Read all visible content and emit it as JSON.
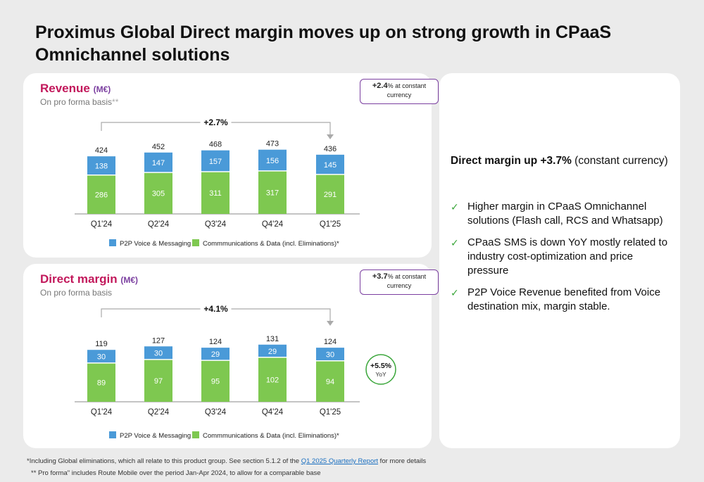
{
  "title": "Proximus Global Direct margin moves up on strong growth in CPaaS Omnichannel solutions",
  "colors": {
    "p2p": "#4a9ad8",
    "comm": "#7ec850",
    "accent_title": "#c2185b",
    "accent_unit": "#7b3fa0",
    "yoy_circle": "#3aa63a"
  },
  "revenue": {
    "title": "Revenue",
    "unit": "(M€)",
    "subtitle": "On pro forma basis",
    "subtitle_mark": "**",
    "callout_value": "+2.4",
    "callout_text": "% at constant currency",
    "growth_label": "+2.7%"
  },
  "direct_margin": {
    "title": "Direct margin",
    "unit": "(M€)",
    "subtitle": "On pro forma basis",
    "callout_value": "+3.7",
    "callout_text": "% at constant currency",
    "growth_label": "+4.1%",
    "yoy_value": "+5.5%",
    "yoy_label": "YoY"
  },
  "legend": {
    "p2p": "P2P Voice & Messaging",
    "comm": "Commmunications & Data (incl. Eliminations)*"
  },
  "chart_data": [
    {
      "type": "bar",
      "stacked": true,
      "title": "Revenue (M€)",
      "categories": [
        "Q1'24",
        "Q2'24",
        "Q3'24",
        "Q4'24",
        "Q1'25"
      ],
      "series": [
        {
          "name": "Commmunications & Data (incl. Eliminations)*",
          "values": [
            286,
            305,
            311,
            317,
            291
          ]
        },
        {
          "name": "P2P Voice & Messaging",
          "values": [
            138,
            147,
            157,
            156,
            145
          ]
        }
      ],
      "totals": [
        424,
        452,
        468,
        473,
        436
      ]
    },
    {
      "type": "bar",
      "stacked": true,
      "title": "Direct margin (M€)",
      "categories": [
        "Q1'24",
        "Q2'24",
        "Q3'24",
        "Q4'24",
        "Q1'25"
      ],
      "series": [
        {
          "name": "Commmunications & Data (incl. Eliminations)*",
          "values": [
            89,
            97,
            95,
            102,
            94
          ]
        },
        {
          "name": "P2P Voice & Messaging",
          "values": [
            30,
            30,
            29,
            29,
            30
          ]
        }
      ],
      "totals": [
        119,
        127,
        124,
        131,
        124
      ]
    }
  ],
  "right_panel": {
    "headline_bold": "Direct margin up +3.7%",
    "headline_rest": " (constant currency)",
    "check": "✓",
    "bullets": [
      "Higher margin in CPaaS Omnichannel solutions (Flash call, RCS and Whatsapp)",
      "CPaaS SMS is down YoY mostly related to industry cost-optimization and price pressure",
      "P2P Voice Revenue benefited from Voice destination mix, margin stable."
    ]
  },
  "footnotes": {
    "f1_before": "*Including Global eliminations, which all relate to this product group. See section 5.1.2 of the ",
    "f1_link": "Q1 2025 Quarterly Report",
    "f1_after": " for more details",
    "f2": "** Pro forma\" includes Route Mobile over the period Jan-Apr 2024, to allow for a comparable base"
  }
}
